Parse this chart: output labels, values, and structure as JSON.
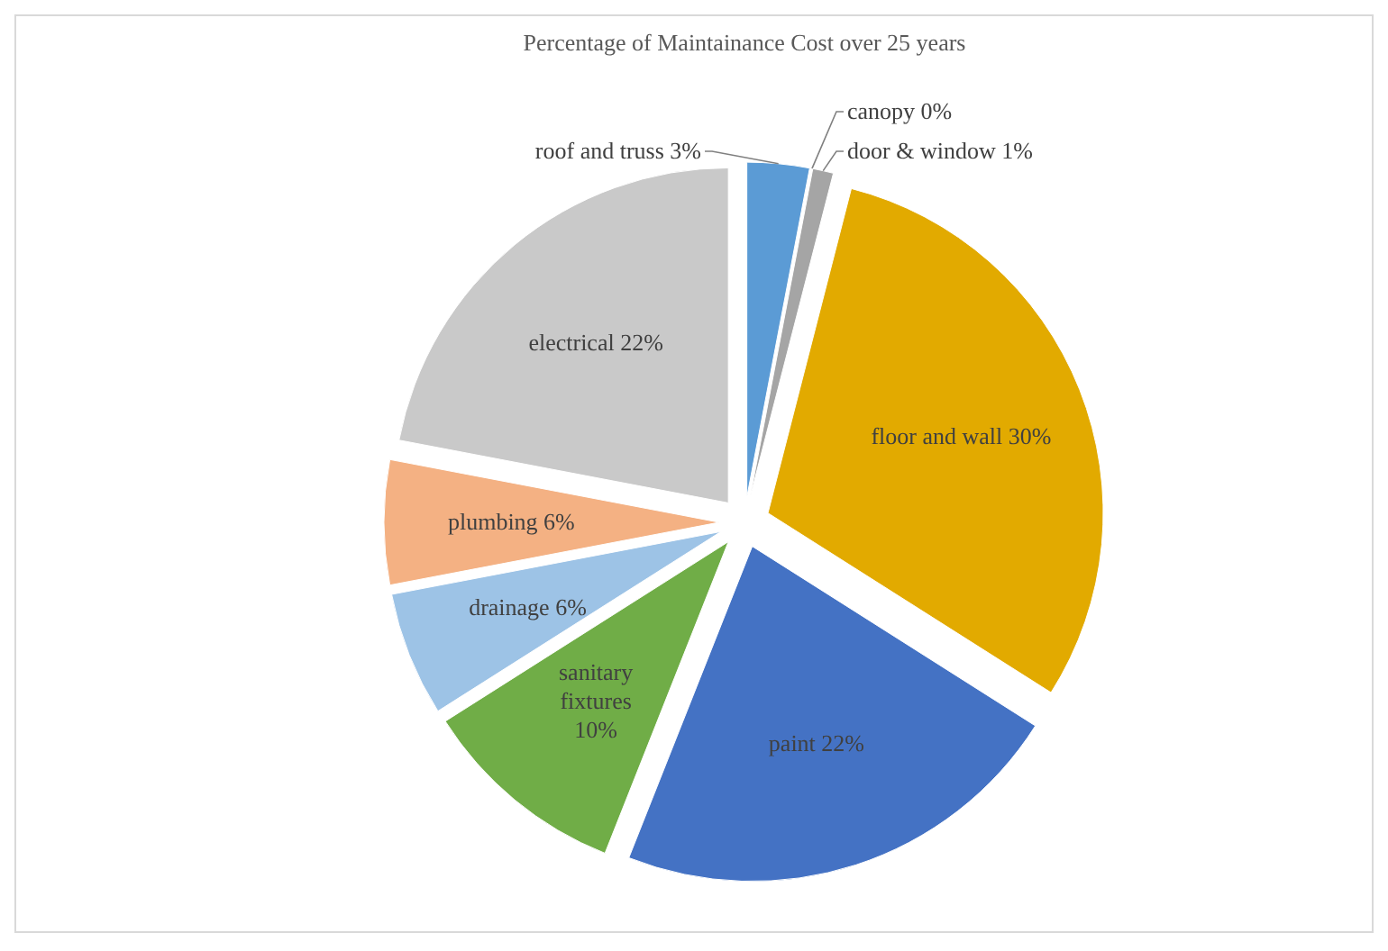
{
  "chart_data": {
    "type": "pie",
    "title": "Percentage of Maintainance Cost over 25 years",
    "categories": [
      "roof and truss",
      "canopy",
      "door & window",
      "floor and wall",
      "paint",
      "sanitary fixtures",
      "drainage",
      "plumbing",
      "electrical"
    ],
    "values": [
      3,
      0,
      1,
      30,
      22,
      10,
      6,
      6,
      22
    ],
    "colors": [
      "#5b9bd5",
      "#ed7d31",
      "#a5a5a5",
      "#e2aa00",
      "#4472c4",
      "#70ad47",
      "#9dc3e6",
      "#f4b183",
      "#c9c9c9"
    ],
    "value_labels": [
      "3%",
      "0%",
      "1%",
      "30%",
      "22%",
      "10%",
      "6%",
      "6%",
      "22%"
    ]
  }
}
